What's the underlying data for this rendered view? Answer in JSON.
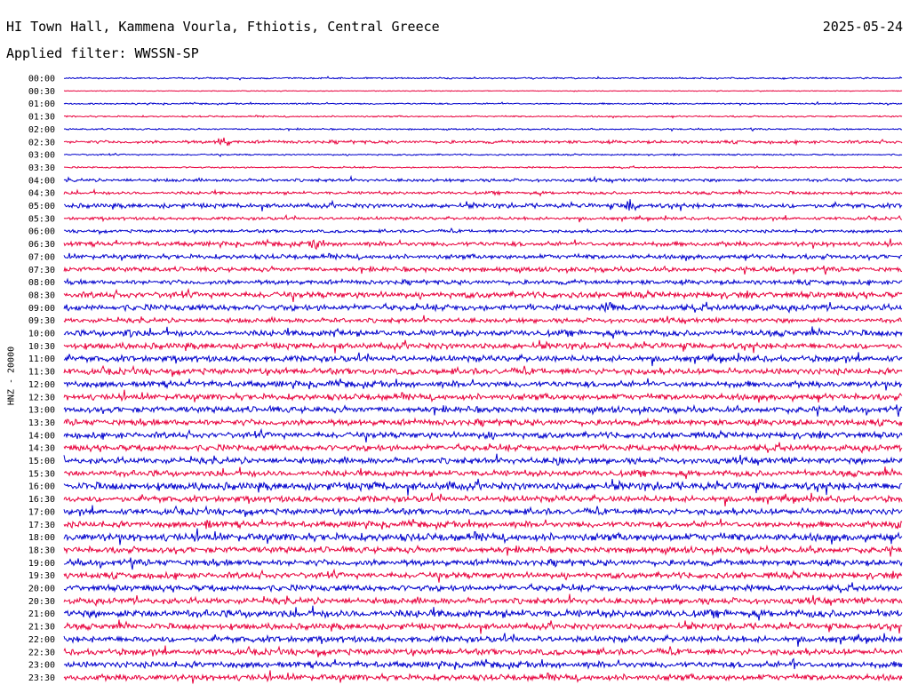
{
  "header": {
    "title": "HI Town Hall, Kammena Vourla, Fthiotis, Central Greece",
    "date": "2025-05-24",
    "filter": "Applied filter: WWSSN-SP"
  },
  "chart_data": {
    "type": "line",
    "ylabel": "HNZ - 20000",
    "rows": [
      "00:00",
      "00:30",
      "01:00",
      "01:30",
      "02:00",
      "02:30",
      "03:00",
      "03:30",
      "04:00",
      "04:30",
      "05:00",
      "05:30",
      "06:00",
      "06:30",
      "07:00",
      "07:30",
      "08:00",
      "08:30",
      "09:00",
      "09:30",
      "10:00",
      "10:30",
      "11:00",
      "11:30",
      "12:00",
      "12:30",
      "13:00",
      "13:30",
      "14:00",
      "14:30",
      "15:00",
      "15:30",
      "16:00",
      "16:30",
      "17:00",
      "17:30",
      "18:00",
      "18:30",
      "19:00",
      "19:30",
      "20:00",
      "20:30",
      "21:00",
      "21:30",
      "22:00",
      "22:30",
      "23:00",
      "23:30"
    ],
    "colors": [
      "#0000cc",
      "#e8003c"
    ],
    "row_minutes": 30,
    "noise_level": [
      1,
      0.5,
      1,
      1,
      1,
      2,
      1,
      1,
      2,
      2,
      3,
      2,
      2,
      3,
      3,
      3,
      3,
      4,
      4,
      3,
      4,
      4,
      4,
      4,
      4,
      4,
      4,
      4,
      4,
      4,
      4,
      4,
      5,
      4,
      4,
      4,
      5,
      4,
      4,
      4,
      4,
      4,
      5,
      4,
      4,
      4,
      4,
      4
    ],
    "events": [
      {
        "row": "02:30",
        "minute": 5.7,
        "amp": 8
      },
      {
        "row": "06:30",
        "minute": 9.0,
        "amp": 7
      },
      {
        "row": "05:00",
        "minute": 20.3,
        "amp": 9
      },
      {
        "row": "09:00",
        "minute": 19.5,
        "amp": 8
      },
      {
        "row": "09:00",
        "minute": 24.8,
        "amp": 8
      },
      {
        "row": "10:00",
        "minute": 2.3,
        "amp": 6
      },
      {
        "row": "10:00",
        "minute": 9.8,
        "amp": 7
      },
      {
        "row": "14:00",
        "minute": 15.2,
        "amp": 6
      },
      {
        "row": "15:00",
        "minute": 17.7,
        "amp": 6
      },
      {
        "row": "16:00",
        "minute": 11.2,
        "amp": 6
      },
      {
        "row": "16:00",
        "minute": 13.8,
        "amp": 6
      },
      {
        "row": "17:30",
        "minute": 5.1,
        "amp": 7
      },
      {
        "row": "17:30",
        "minute": 29.9,
        "amp": 7
      },
      {
        "row": "23:00",
        "minute": 26.1,
        "amp": 6
      }
    ]
  }
}
